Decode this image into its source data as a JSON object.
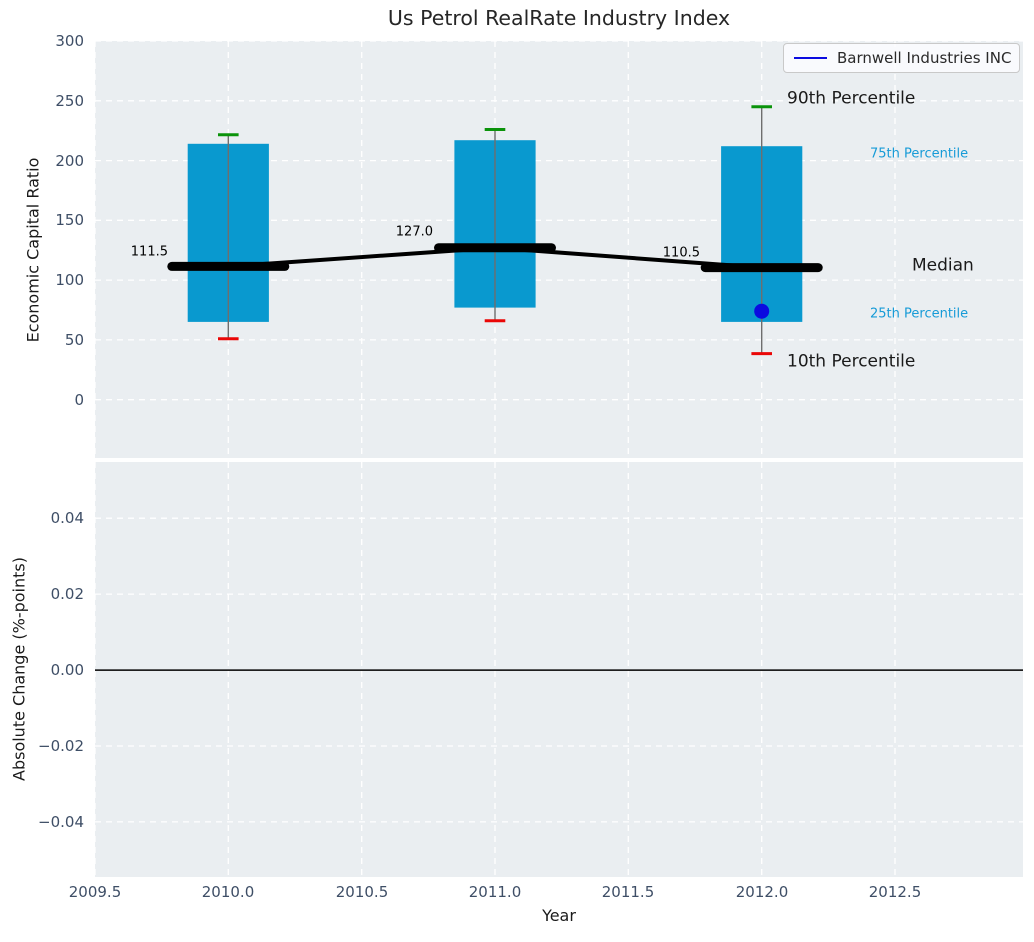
{
  "chart_data": {
    "type": "boxplot",
    "title": "Us Petrol RealRate Industry Index",
    "xlabel": "Year",
    "xlim": [
      2009.5,
      2012.98
    ],
    "xticks": [
      {
        "value": 2009.5,
        "label": "2009.5"
      },
      {
        "value": 2010.0,
        "label": "2010.0"
      },
      {
        "value": 2010.5,
        "label": "2010.5"
      },
      {
        "value": 2011.0,
        "label": "2011.0"
      },
      {
        "value": 2011.5,
        "label": "2011.5"
      },
      {
        "value": 2012.0,
        "label": "2012.0"
      },
      {
        "value": 2012.5,
        "label": "2012.5"
      }
    ],
    "legend": {
      "label": "Barnwell Industries INC"
    },
    "top_panel": {
      "ylabel": "Economic Capital Ratio",
      "ylim": [
        -48.8,
        300
      ],
      "grid": true,
      "yticks": [
        {
          "value": 300,
          "label": "300"
        },
        {
          "value": 250,
          "label": "250"
        },
        {
          "value": 200,
          "label": "200"
        },
        {
          "value": 150,
          "label": "150"
        },
        {
          "value": 100,
          "label": "100"
        },
        {
          "value": 50,
          "label": "50"
        },
        {
          "value": 0,
          "label": "0"
        }
      ],
      "boxes": [
        {
          "x": 2010,
          "p10": 51,
          "q1": 65,
          "median": 111.5,
          "q3": 214,
          "p90": 221.5,
          "median_label": "111.5"
        },
        {
          "x": 2011,
          "p10": 66,
          "q1": 77,
          "median": 127.0,
          "q3": 217,
          "p90": 226.0,
          "median_label": "127.0"
        },
        {
          "x": 2012,
          "p10": 38.5,
          "q1": 65,
          "median": 110.5,
          "q3": 212,
          "p90": 245.0,
          "median_label": "110.5"
        }
      ],
      "company_points": [
        {
          "x": 2012,
          "y": 74
        }
      ],
      "annotations": [
        {
          "id": "median-value-2010",
          "text": "111.5",
          "x": 2009.774,
          "y": 123.8,
          "align": "right",
          "size": 13,
          "color": "#000000"
        },
        {
          "id": "median-value-2011",
          "text": "127.0",
          "x": 2010.767,
          "y": 140.1,
          "align": "right",
          "size": 13,
          "color": "#000000"
        },
        {
          "id": "median-value-2012",
          "text": "110.5",
          "x": 2011.767,
          "y": 122.5,
          "align": "right",
          "size": 13,
          "color": "#000000"
        },
        {
          "id": "p90-label",
          "text": "90th Percentile",
          "x": 2012.094,
          "y": 251.7,
          "align": "left",
          "size": 17,
          "color": "#1a1a1a"
        },
        {
          "id": "p75-label",
          "text": "75th Percentile",
          "x": 2012.405,
          "y": 205.7,
          "align": "left",
          "size": 13,
          "color": "#169bd7"
        },
        {
          "id": "median-label",
          "text": "Median",
          "x": 2012.562,
          "y": 111.6,
          "align": "left",
          "size": 17,
          "color": "#1a1a1a"
        },
        {
          "id": "p25-label",
          "text": "25th Percentile",
          "x": 2012.405,
          "y": 71.5,
          "align": "left",
          "size": 13,
          "color": "#169bd7"
        },
        {
          "id": "p10-label",
          "text": "10th Percentile",
          "x": 2012.094,
          "y": 31.8,
          "align": "left",
          "size": 17,
          "color": "#1a1a1a"
        }
      ]
    },
    "bottom_panel": {
      "ylabel": "Absolute Change (%-points)",
      "ylim": [
        -0.0545,
        0.0548
      ],
      "grid": true,
      "zero_line": 0.0,
      "yticks": [
        {
          "value": 0.04,
          "label": "0.04"
        },
        {
          "value": 0.02,
          "label": "0.02"
        },
        {
          "value": 0.0,
          "label": "0.00"
        },
        {
          "value": -0.02,
          "label": "−0.02"
        },
        {
          "value": -0.04,
          "label": "−0.04"
        }
      ]
    },
    "colors": {
      "box": "#0999cf",
      "p90_cap": "#0a930a",
      "p10_cap": "#ea0606",
      "whisker": "#6e6e6e",
      "median": "#000000",
      "company": "#0b0be0",
      "plot_background": "#eaeef1",
      "gridline": "#ffffff",
      "tick_label": "#3e4e66",
      "percentile_text": "#169bd7"
    }
  }
}
